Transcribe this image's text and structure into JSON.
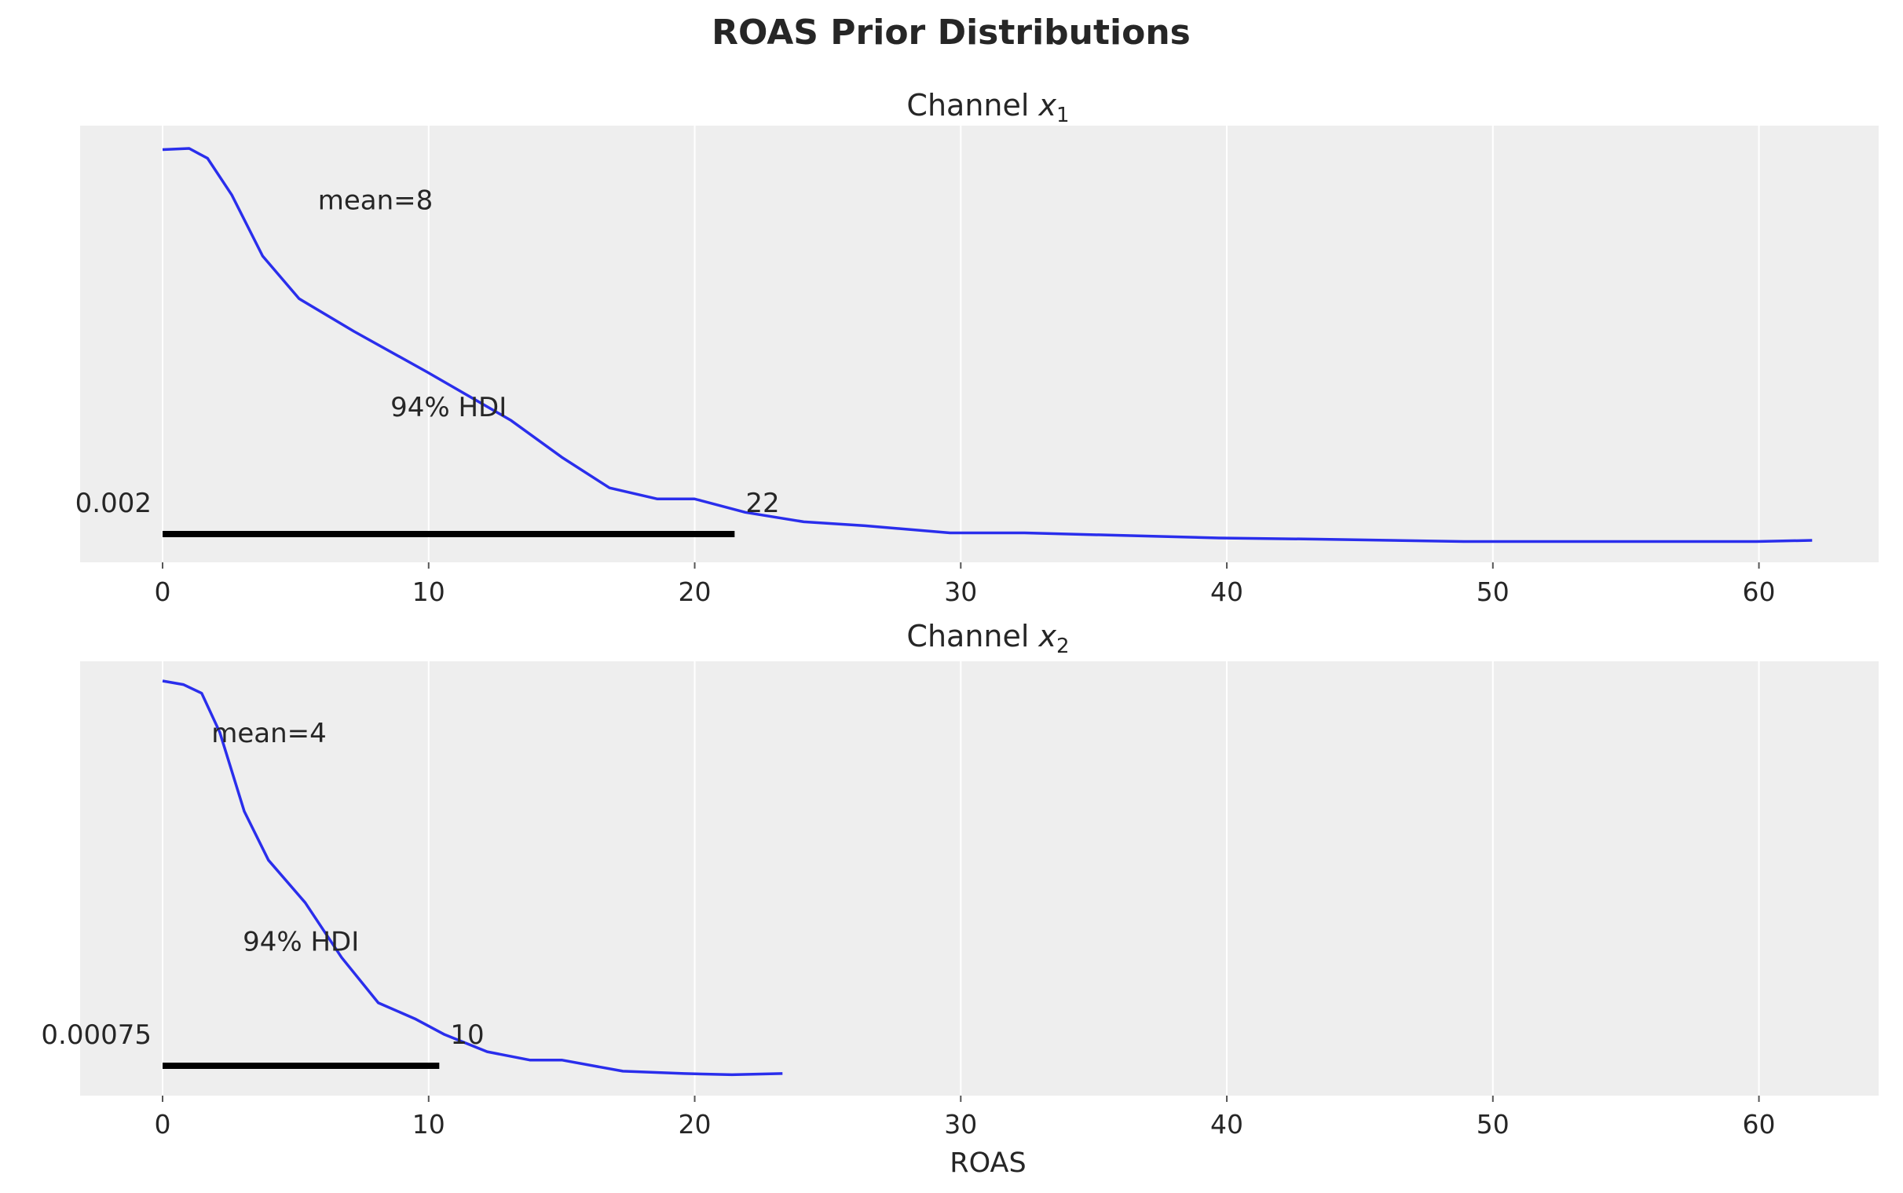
{
  "chart_data": {
    "type": "line",
    "title": "ROAS Prior Distributions",
    "xlabel": "ROAS",
    "colors": {
      "kde": "#2a2eec",
      "hdi": "#000000",
      "panel_bg": "#eeeeee",
      "grid": "#ffffff"
    },
    "grid": true,
    "xlim": [
      -3.1,
      64.5
    ],
    "ylim": [
      0,
      1
    ],
    "xticks": [
      0,
      10,
      20,
      30,
      40,
      50,
      60
    ],
    "xtick_labels": [
      "0",
      "10",
      "20",
      "30",
      "40",
      "50",
      "60"
    ],
    "panels": [
      {
        "title_prefix": "Channel ",
        "title_var": "x",
        "title_sub": "1",
        "mean": 8,
        "mean_label": "mean=8",
        "hdi_label": "94% HDI",
        "hdi": [
          0.002,
          21.5
        ],
        "hdi_low_label": "0.002",
        "hdi_high_label": "22",
        "x": [
          0,
          1.0,
          1.69,
          2.6,
          3.76,
          5.13,
          7.19,
          9.94,
          13.1,
          15.0,
          16.8,
          18.6,
          20.0,
          21.9,
          24.1,
          26.4,
          29.6,
          32.4,
          39.7,
          43.4,
          48.9,
          59.9,
          62.0
        ],
        "y": [
          0.997,
          1.0,
          0.975,
          0.882,
          0.727,
          0.619,
          0.536,
          0.433,
          0.31,
          0.217,
          0.139,
          0.111,
          0.111,
          0.077,
          0.053,
          0.043,
          0.025,
          0.025,
          0.012,
          0.009,
          0.003,
          0.003,
          0.006
        ]
      },
      {
        "title_prefix": "Channel ",
        "title_var": "x",
        "title_sub": "2",
        "mean": 4,
        "mean_label": "mean=4",
        "hdi_label": "94% HDI",
        "hdi": [
          0.00075,
          10.4
        ],
        "hdi_low_label": "0.00075",
        "hdi_high_label": "10",
        "x": [
          0,
          0.78,
          1.47,
          2.15,
          3.07,
          3.98,
          5.36,
          6.73,
          8.11,
          9.48,
          10.6,
          12.2,
          13.8,
          15.0,
          17.3,
          19.6,
          21.4,
          23.3
        ],
        "y": [
          1.0,
          0.991,
          0.969,
          0.871,
          0.672,
          0.549,
          0.442,
          0.304,
          0.19,
          0.15,
          0.11,
          0.067,
          0.046,
          0.046,
          0.018,
          0.012,
          0.009,
          0.012
        ]
      }
    ]
  }
}
